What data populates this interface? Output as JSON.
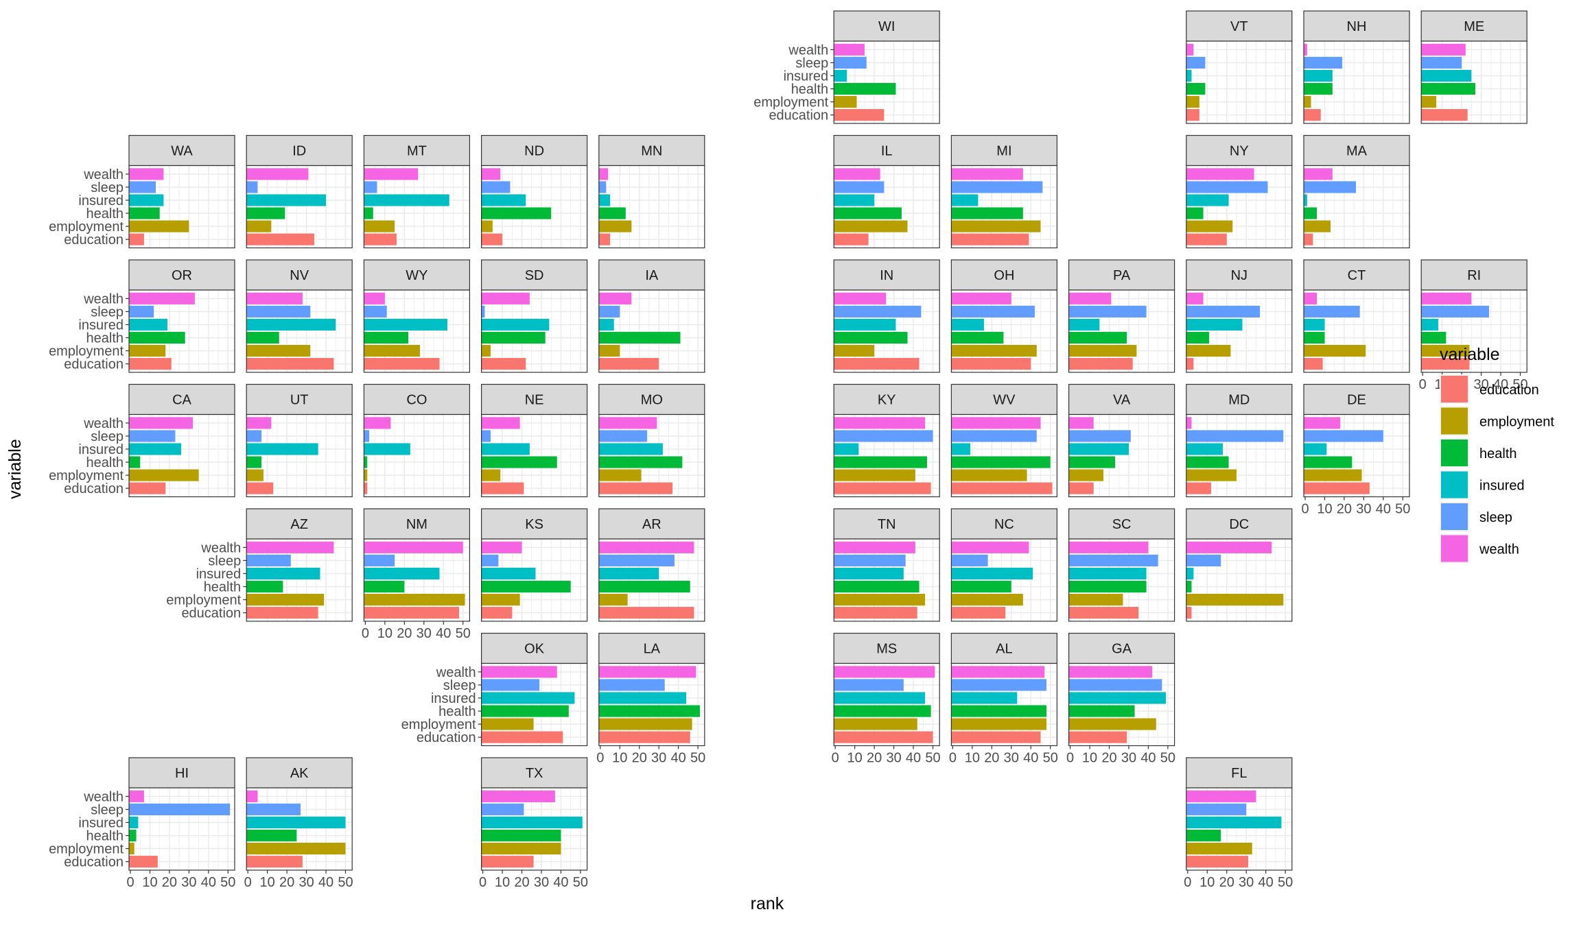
{
  "chart_data": {
    "type": "bar",
    "orientation": "horizontal",
    "layout": "geofacet-us-states",
    "xlabel": "rank",
    "ylabel": "variable",
    "xlim": [
      0,
      52
    ],
    "xticks": [
      0,
      10,
      20,
      30,
      40,
      50
    ],
    "grid": true,
    "legend": {
      "title": "variable",
      "position": "right",
      "entries": [
        "education",
        "employment",
        "health",
        "insured",
        "sleep",
        "wealth"
      ]
    },
    "colors": {
      "education": "#F8766D",
      "employment": "#B79F00",
      "health": "#00BA38",
      "insured": "#00BFC4",
      "sleep": "#619CFF",
      "wealth": "#F564E3"
    },
    "categories": [
      "education",
      "employment",
      "health",
      "insured",
      "sleep",
      "wealth"
    ],
    "states": [
      {
        "name": "WI",
        "col": 6,
        "row": 0,
        "values": {
          "education": 25,
          "employment": 11,
          "health": 31,
          "insured": 6,
          "sleep": 16,
          "wealth": 15
        }
      },
      {
        "name": "VT",
        "col": 9,
        "row": 0,
        "values": {
          "education": 6,
          "employment": 6,
          "health": 9,
          "insured": 2,
          "sleep": 9,
          "wealth": 3
        }
      },
      {
        "name": "NH",
        "col": 10,
        "row": 0,
        "values": {
          "education": 8,
          "employment": 3,
          "health": 14,
          "insured": 14,
          "sleep": 19,
          "wealth": 1
        }
      },
      {
        "name": "ME",
        "col": 11,
        "row": 0,
        "values": {
          "education": 23,
          "employment": 7,
          "health": 27,
          "insured": 25,
          "sleep": 20,
          "wealth": 22
        }
      },
      {
        "name": "WA",
        "col": 0,
        "row": 1,
        "values": {
          "education": 7,
          "employment": 30,
          "health": 15,
          "insured": 17,
          "sleep": 13,
          "wealth": 17
        }
      },
      {
        "name": "ID",
        "col": 1,
        "row": 1,
        "values": {
          "education": 34,
          "employment": 12,
          "health": 19,
          "insured": 40,
          "sleep": 5,
          "wealth": 31
        }
      },
      {
        "name": "MT",
        "col": 2,
        "row": 1,
        "values": {
          "education": 16,
          "employment": 15,
          "health": 4,
          "insured": 43,
          "sleep": 6,
          "wealth": 27
        }
      },
      {
        "name": "ND",
        "col": 3,
        "row": 1,
        "values": {
          "education": 10,
          "employment": 5,
          "health": 35,
          "insured": 22,
          "sleep": 14,
          "wealth": 9
        }
      },
      {
        "name": "MN",
        "col": 4,
        "row": 1,
        "values": {
          "education": 5,
          "employment": 16,
          "health": 13,
          "insured": 5,
          "sleep": 3,
          "wealth": 4
        }
      },
      {
        "name": "IL",
        "col": 6,
        "row": 1,
        "values": {
          "education": 17,
          "employment": 37,
          "health": 34,
          "insured": 20,
          "sleep": 25,
          "wealth": 23
        }
      },
      {
        "name": "MI",
        "col": 7,
        "row": 1,
        "values": {
          "education": 39,
          "employment": 45,
          "health": 36,
          "insured": 13,
          "sleep": 46,
          "wealth": 36
        }
      },
      {
        "name": "NY",
        "col": 9,
        "row": 1,
        "values": {
          "education": 20,
          "employment": 23,
          "health": 8,
          "insured": 21,
          "sleep": 41,
          "wealth": 34
        }
      },
      {
        "name": "MA",
        "col": 10,
        "row": 1,
        "values": {
          "education": 4,
          "employment": 13,
          "health": 6,
          "insured": 1,
          "sleep": 26,
          "wealth": 14
        }
      },
      {
        "name": "OR",
        "col": 0,
        "row": 2,
        "values": {
          "education": 21,
          "employment": 18,
          "health": 28,
          "insured": 19,
          "sleep": 12,
          "wealth": 33
        }
      },
      {
        "name": "NV",
        "col": 1,
        "row": 2,
        "values": {
          "education": 44,
          "employment": 32,
          "health": 16,
          "insured": 45,
          "sleep": 32,
          "wealth": 28
        }
      },
      {
        "name": "WY",
        "col": 2,
        "row": 2,
        "values": {
          "education": 38,
          "employment": 28,
          "health": 22,
          "insured": 42,
          "sleep": 11,
          "wealth": 10
        }
      },
      {
        "name": "SD",
        "col": 3,
        "row": 2,
        "values": {
          "education": 22,
          "employment": 4,
          "health": 32,
          "insured": 34,
          "sleep": 1,
          "wealth": 24
        }
      },
      {
        "name": "IA",
        "col": 4,
        "row": 2,
        "values": {
          "education": 30,
          "employment": 10,
          "health": 41,
          "insured": 7,
          "sleep": 10,
          "wealth": 16
        }
      },
      {
        "name": "IN",
        "col": 6,
        "row": 2,
        "values": {
          "education": 43,
          "employment": 20,
          "health": 37,
          "insured": 31,
          "sleep": 44,
          "wealth": 26
        }
      },
      {
        "name": "OH",
        "col": 7,
        "row": 2,
        "values": {
          "education": 40,
          "employment": 43,
          "health": 26,
          "insured": 16,
          "sleep": 42,
          "wealth": 30
        }
      },
      {
        "name": "PA",
        "col": 8,
        "row": 2,
        "values": {
          "education": 32,
          "employment": 34,
          "health": 29,
          "insured": 15,
          "sleep": 39,
          "wealth": 21
        }
      },
      {
        "name": "NJ",
        "col": 9,
        "row": 2,
        "values": {
          "education": 3,
          "employment": 22,
          "health": 11,
          "insured": 28,
          "sleep": 37,
          "wealth": 8
        }
      },
      {
        "name": "CT",
        "col": 10,
        "row": 2,
        "values": {
          "education": 9,
          "employment": 31,
          "health": 10,
          "insured": 10,
          "sleep": 28,
          "wealth": 6
        }
      },
      {
        "name": "RI",
        "col": 11,
        "row": 2,
        "values": {
          "education": 24,
          "employment": 24,
          "health": 12,
          "insured": 8,
          "sleep": 34,
          "wealth": 25
        }
      },
      {
        "name": "CA",
        "col": 0,
        "row": 3,
        "values": {
          "education": 18,
          "employment": 35,
          "health": 5,
          "insured": 26,
          "sleep": 23,
          "wealth": 32
        }
      },
      {
        "name": "UT",
        "col": 1,
        "row": 3,
        "values": {
          "education": 13,
          "employment": 8,
          "health": 7,
          "insured": 36,
          "sleep": 7,
          "wealth": 12
        }
      },
      {
        "name": "CO",
        "col": 2,
        "row": 3,
        "values": {
          "education": 1,
          "employment": 1,
          "health": 1,
          "insured": 23,
          "sleep": 2,
          "wealth": 13
        }
      },
      {
        "name": "NE",
        "col": 3,
        "row": 3,
        "values": {
          "education": 21,
          "employment": 9,
          "health": 38,
          "insured": 24,
          "sleep": 4,
          "wealth": 19
        }
      },
      {
        "name": "MO",
        "col": 4,
        "row": 3,
        "values": {
          "education": 37,
          "employment": 21,
          "health": 42,
          "insured": 32,
          "sleep": 24,
          "wealth": 29
        }
      },
      {
        "name": "KY",
        "col": 6,
        "row": 3,
        "values": {
          "education": 49,
          "employment": 41,
          "health": 47,
          "insured": 12,
          "sleep": 50,
          "wealth": 46
        }
      },
      {
        "name": "WV",
        "col": 7,
        "row": 3,
        "values": {
          "education": 51,
          "employment": 38,
          "health": 50,
          "insured": 9,
          "sleep": 43,
          "wealth": 45
        }
      },
      {
        "name": "VA",
        "col": 8,
        "row": 3,
        "values": {
          "education": 12,
          "employment": 17,
          "health": 23,
          "insured": 30,
          "sleep": 31,
          "wealth": 12
        }
      },
      {
        "name": "MD",
        "col": 9,
        "row": 3,
        "values": {
          "education": 12,
          "employment": 25,
          "health": 21,
          "insured": 18,
          "sleep": 49,
          "wealth": 2
        }
      },
      {
        "name": "DE",
        "col": 10,
        "row": 3,
        "values": {
          "education": 33,
          "employment": 29,
          "health": 24,
          "insured": 11,
          "sleep": 40,
          "wealth": 18
        }
      },
      {
        "name": "AZ",
        "col": 1,
        "row": 4,
        "values": {
          "education": 36,
          "employment": 39,
          "health": 18,
          "insured": 37,
          "sleep": 22,
          "wealth": 44
        }
      },
      {
        "name": "NM",
        "col": 2,
        "row": 4,
        "values": {
          "education": 48,
          "employment": 51,
          "health": 20,
          "insured": 38,
          "sleep": 15,
          "wealth": 50
        }
      },
      {
        "name": "KS",
        "col": 3,
        "row": 4,
        "values": {
          "education": 15,
          "employment": 19,
          "health": 45,
          "insured": 27,
          "sleep": 8,
          "wealth": 20
        }
      },
      {
        "name": "AR",
        "col": 4,
        "row": 4,
        "values": {
          "education": 48,
          "employment": 14,
          "health": 46,
          "insured": 30,
          "sleep": 38,
          "wealth": 48
        }
      },
      {
        "name": "TN",
        "col": 6,
        "row": 4,
        "values": {
          "education": 42,
          "employment": 46,
          "health": 43,
          "insured": 35,
          "sleep": 36,
          "wealth": 41
        }
      },
      {
        "name": "NC",
        "col": 7,
        "row": 4,
        "values": {
          "education": 27,
          "employment": 36,
          "health": 30,
          "insured": 41,
          "sleep": 18,
          "wealth": 39
        }
      },
      {
        "name": "SC",
        "col": 8,
        "row": 4,
        "values": {
          "education": 35,
          "employment": 27,
          "health": 39,
          "insured": 39,
          "sleep": 45,
          "wealth": 40
        }
      },
      {
        "name": "DC",
        "col": 9,
        "row": 4,
        "values": {
          "education": 2,
          "employment": 49,
          "health": 2,
          "insured": 3,
          "sleep": 17,
          "wealth": 43
        }
      },
      {
        "name": "OK",
        "col": 3,
        "row": 5,
        "values": {
          "education": 41,
          "employment": 26,
          "health": 44,
          "insured": 47,
          "sleep": 29,
          "wealth": 38
        }
      },
      {
        "name": "LA",
        "col": 4,
        "row": 5,
        "values": {
          "education": 46,
          "employment": 47,
          "health": 51,
          "insured": 44,
          "sleep": 33,
          "wealth": 49
        }
      },
      {
        "name": "MS",
        "col": 6,
        "row": 5,
        "values": {
          "education": 50,
          "employment": 42,
          "health": 49,
          "insured": 46,
          "sleep": 35,
          "wealth": 51
        }
      },
      {
        "name": "AL",
        "col": 7,
        "row": 5,
        "values": {
          "education": 45,
          "employment": 48,
          "health": 48,
          "insured": 33,
          "sleep": 48,
          "wealth": 47
        }
      },
      {
        "name": "GA",
        "col": 8,
        "row": 5,
        "values": {
          "education": 29,
          "employment": 44,
          "health": 33,
          "insured": 49,
          "sleep": 47,
          "wealth": 42
        }
      },
      {
        "name": "HI",
        "col": 0,
        "row": 6,
        "values": {
          "education": 14,
          "employment": 2,
          "health": 3,
          "insured": 4,
          "sleep": 51,
          "wealth": 7
        }
      },
      {
        "name": "AK",
        "col": 1,
        "row": 6,
        "values": {
          "education": 28,
          "employment": 50,
          "health": 25,
          "insured": 50,
          "sleep": 27,
          "wealth": 5
        }
      },
      {
        "name": "TX",
        "col": 3,
        "row": 6,
        "values": {
          "education": 26,
          "employment": 40,
          "health": 40,
          "insured": 51,
          "sleep": 21,
          "wealth": 37
        }
      },
      {
        "name": "FL",
        "col": 9,
        "row": 6,
        "values": {
          "education": 31,
          "employment": 33,
          "health": 17,
          "insured": 48,
          "sleep": 30,
          "wealth": 35
        }
      }
    ]
  }
}
